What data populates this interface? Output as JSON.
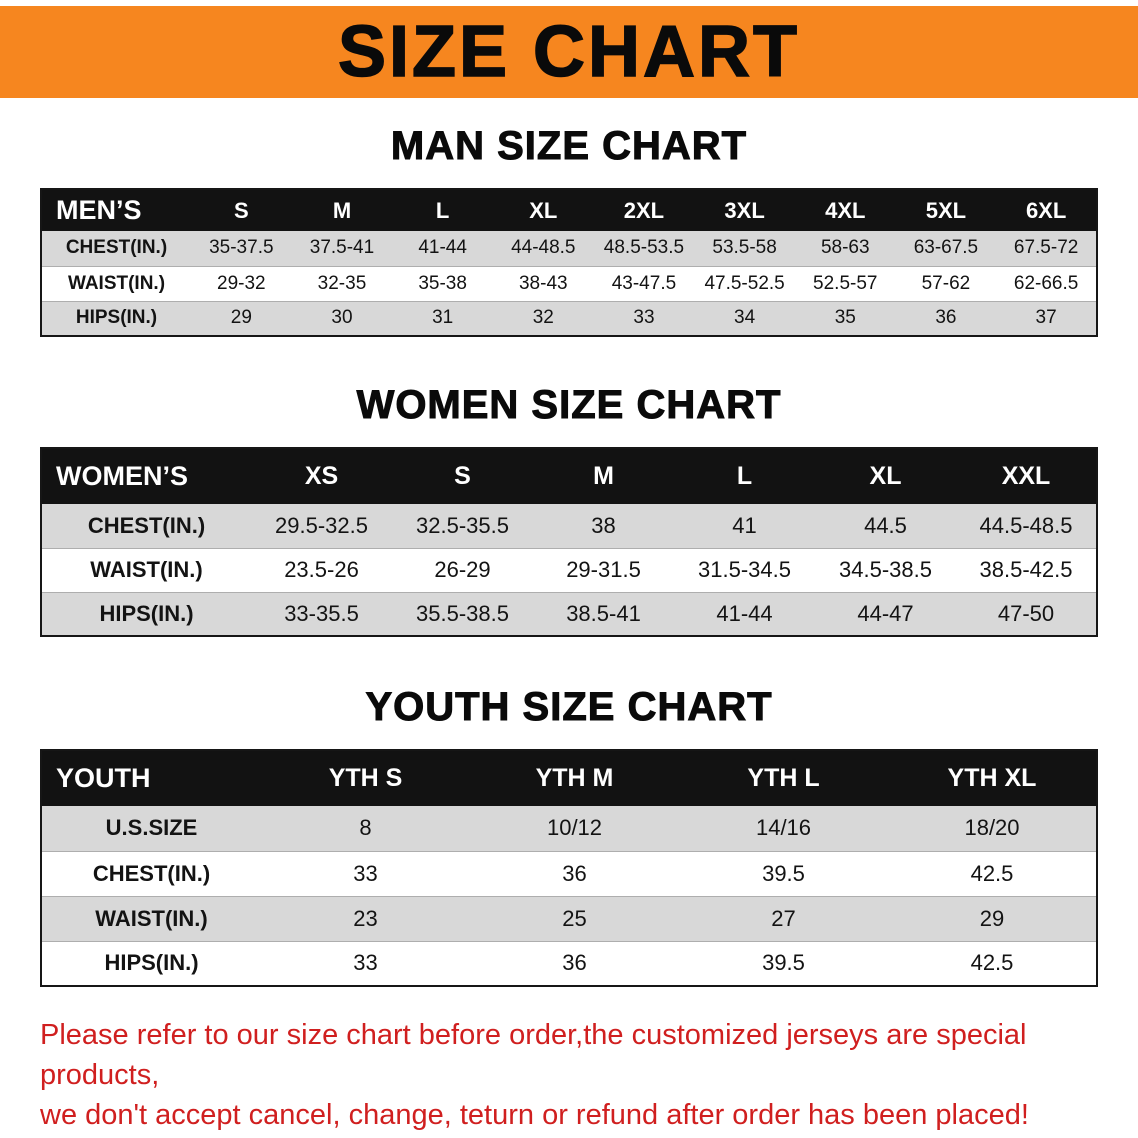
{
  "banner": {
    "title": "SIZE CHART"
  },
  "colors": {
    "banner_bg": "#F6861F",
    "table_header_bg": "#121212",
    "row_stripe": "#D8D8D8",
    "disclaimer_red": "#D01F1F"
  },
  "chart_data": [
    {
      "type": "table",
      "title": "MAN SIZE CHART",
      "header": [
        "MEN’S",
        "S",
        "M",
        "L",
        "XL",
        "2XL",
        "3XL",
        "4XL",
        "5XL",
        "6XL"
      ],
      "rows": [
        [
          "CHEST(IN.)",
          "35-37.5",
          "37.5-41",
          "41-44",
          "44-48.5",
          "48.5-53.5",
          "53.5-58",
          "58-63",
          "63-67.5",
          "67.5-72"
        ],
        [
          "WAIST(IN.)",
          "29-32",
          "32-35",
          "35-38",
          "38-43",
          "43-47.5",
          "47.5-52.5",
          "52.5-57",
          "57-62",
          "62-66.5"
        ],
        [
          "HIPS(IN.)",
          "29",
          "30",
          "31",
          "32",
          "33",
          "34",
          "35",
          "36",
          "37"
        ]
      ]
    },
    {
      "type": "table",
      "title": "WOMEN SIZE CHART",
      "header": [
        "WOMEN’S",
        "XS",
        "S",
        "M",
        "L",
        "XL",
        "XXL"
      ],
      "rows": [
        [
          "CHEST(IN.)",
          "29.5-32.5",
          "32.5-35.5",
          "38",
          "41",
          "44.5",
          "44.5-48.5"
        ],
        [
          "WAIST(IN.)",
          "23.5-26",
          "26-29",
          "29-31.5",
          "31.5-34.5",
          "34.5-38.5",
          "38.5-42.5"
        ],
        [
          "HIPS(IN.)",
          "33-35.5",
          "35.5-38.5",
          "38.5-41",
          "41-44",
          "44-47",
          "47-50"
        ]
      ]
    },
    {
      "type": "table",
      "title": "YOUTH SIZE CHART",
      "header": [
        "YOUTH",
        "YTH S",
        "YTH M",
        "YTH L",
        "YTH XL"
      ],
      "rows": [
        [
          "U.S.SIZE",
          "8",
          "10/12",
          "14/16",
          "18/20"
        ],
        [
          "CHEST(IN.)",
          "33",
          "36",
          "39.5",
          "42.5"
        ],
        [
          "WAIST(IN.)",
          "23",
          "25",
          "27",
          "29"
        ],
        [
          "HIPS(IN.)",
          "33",
          "36",
          "39.5",
          "42.5"
        ]
      ]
    }
  ],
  "disclaimer": {
    "line1": "Please refer to our size chart before order,the customized jerseys are special products,",
    "line2": "we don't accept cancel, change, teturn or refund after order has been placed!"
  }
}
